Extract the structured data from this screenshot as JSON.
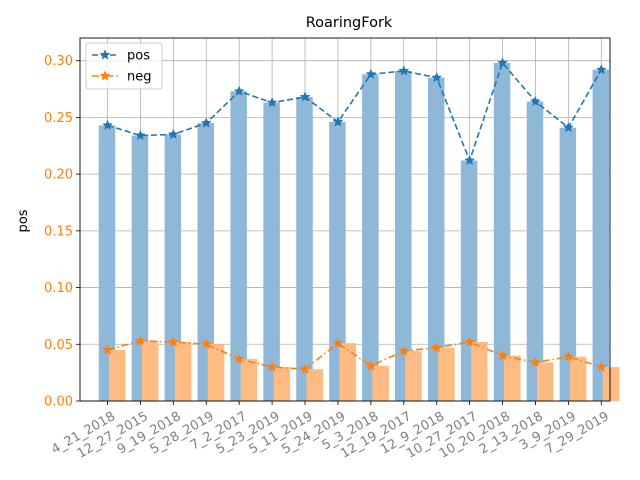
{
  "chart_data": {
    "type": "bar",
    "title": "RoaringFork",
    "xlabel": "",
    "ylabel": "pos",
    "ylim": [
      0,
      0.32
    ],
    "yticks": [
      "0.00",
      "0.05",
      "0.10",
      "0.15",
      "0.20",
      "0.25",
      "0.30"
    ],
    "grid": true,
    "legend_position": "top-left",
    "categories": [
      "4_21_2018",
      "12_27_2015",
      "9_19_2018",
      "5_28_2019",
      "7_2_2017",
      "5_23_2019",
      "5_11_2019",
      "5_24_2019",
      "5_3_2018",
      "12_19_2017",
      "12_9_2018",
      "10_27_2017",
      "10_20_2018",
      "2_13_2018",
      "3_9_2019",
      "7_29_2019"
    ],
    "series": [
      {
        "name": "pos",
        "color": "#1f77b4",
        "bar_color": "#8fb8d8",
        "line_style": "dashed",
        "marker": "star",
        "values": [
          0.243,
          0.234,
          0.235,
          0.245,
          0.273,
          0.263,
          0.268,
          0.246,
          0.288,
          0.291,
          0.285,
          0.212,
          0.298,
          0.264,
          0.241,
          0.292
        ]
      },
      {
        "name": "neg",
        "color": "#ff7f0e",
        "bar_color": "#ffbb82",
        "line_style": "dashdot",
        "marker": "star",
        "values": [
          0.045,
          0.053,
          0.052,
          0.05,
          0.037,
          0.03,
          0.028,
          0.051,
          0.031,
          0.044,
          0.047,
          0.052,
          0.04,
          0.034,
          0.039,
          0.03
        ]
      }
    ]
  }
}
